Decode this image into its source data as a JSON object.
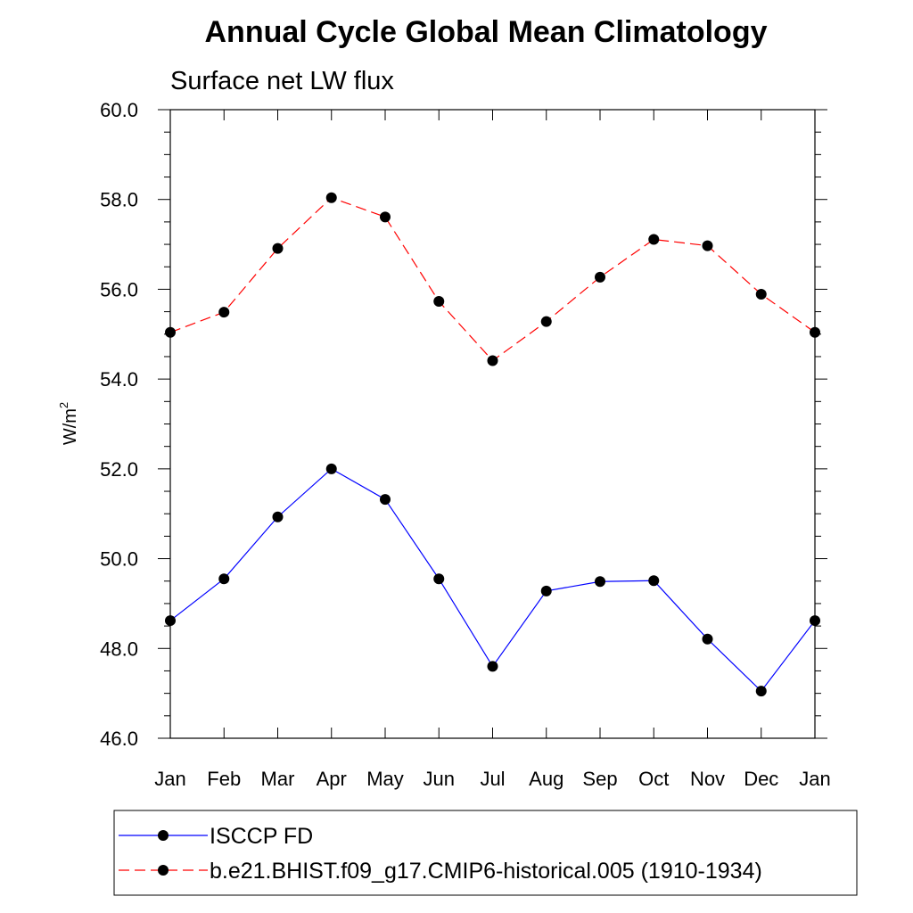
{
  "chart_data": {
    "type": "line",
    "title": "Annual Cycle Global Mean Climatology",
    "subtitle": "Surface net LW flux",
    "ylabel": "W/m",
    "ylabel_superscript": "2",
    "xlabel": "",
    "categories": [
      "Jan",
      "Feb",
      "Mar",
      "Apr",
      "May",
      "Jun",
      "Jul",
      "Aug",
      "Sep",
      "Oct",
      "Nov",
      "Dec",
      "Jan"
    ],
    "ylim": [
      46.0,
      60.0
    ],
    "yticks": [
      "46.0",
      "48.0",
      "50.0",
      "52.0",
      "54.0",
      "56.0",
      "58.0",
      "60.0"
    ],
    "grid": false,
    "legend_position": "bottom",
    "series": [
      {
        "name": "ISCCP FD",
        "color": "#0000ff",
        "line_style": "solid",
        "marker": "filled-circle",
        "values": [
          48.62,
          49.55,
          50.93,
          52.0,
          51.32,
          49.55,
          47.6,
          49.28,
          49.49,
          49.51,
          48.21,
          47.05,
          48.62
        ]
      },
      {
        "name": "b.e21.BHIST.f09_g17.CMIP6-historical.005 (1910-1934)",
        "color": "#ff0000",
        "line_style": "dashed",
        "marker": "filled-circle",
        "values": [
          55.04,
          55.49,
          56.91,
          58.04,
          57.61,
          55.73,
          54.41,
          55.28,
          56.27,
          57.11,
          56.97,
          55.89,
          55.04
        ]
      }
    ]
  }
}
